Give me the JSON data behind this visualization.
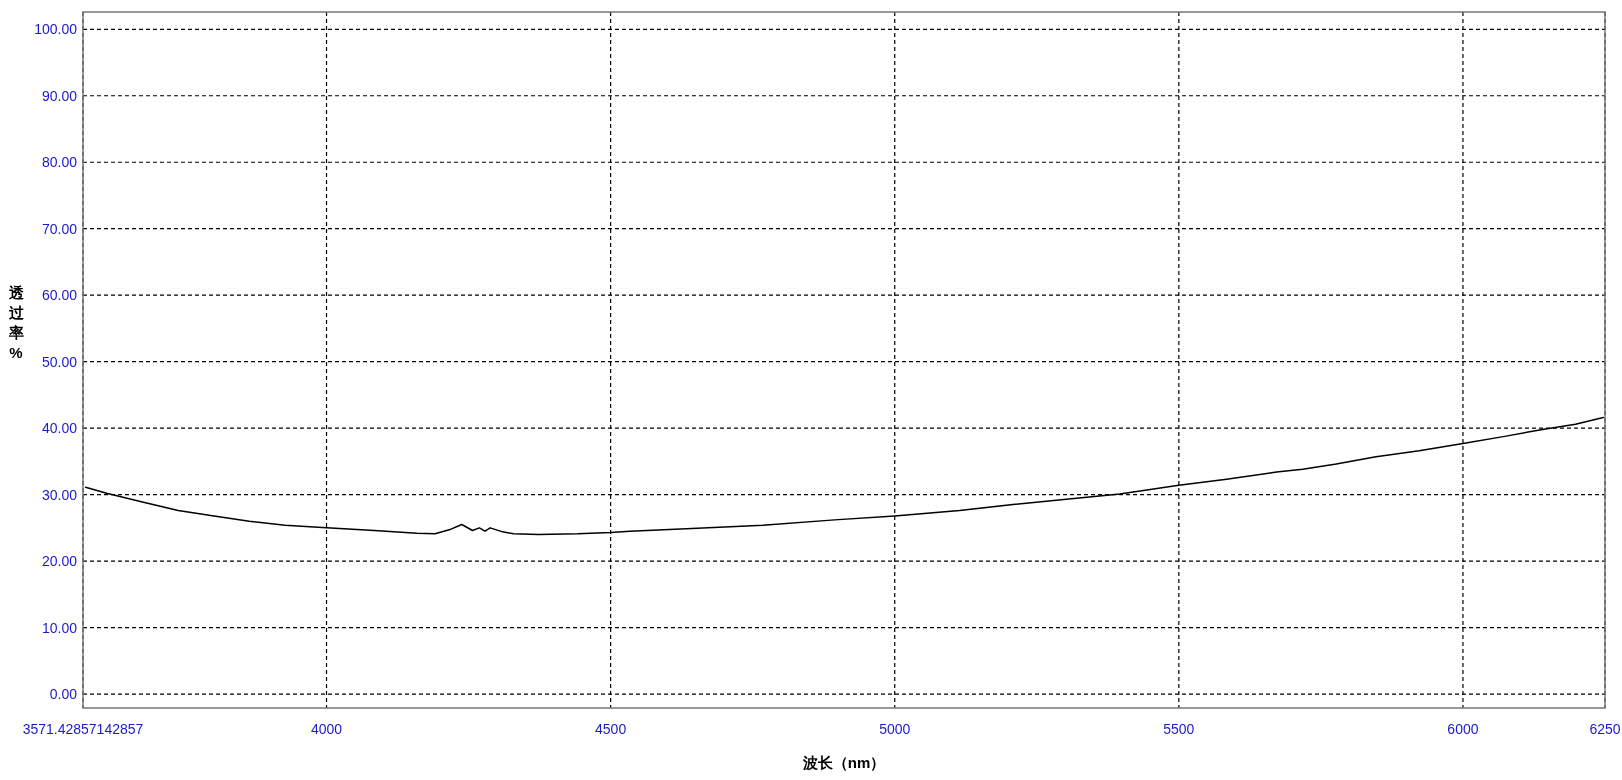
{
  "chart_data": {
    "type": "line",
    "xlabel": "波长（nm）",
    "ylabel": "透过率%",
    "xlim": [
      3571.42857142857,
      6250
    ],
    "ylim": [
      -2.1,
      102.6
    ],
    "xticks": [
      {
        "value": 3571.42857142857,
        "label": "3571.42857142857"
      },
      4000,
      4500,
      5000,
      5500,
      6000,
      6250
    ],
    "yticks": [
      {
        "value": 0,
        "label": "0.00"
      },
      {
        "value": 10,
        "label": "10.00"
      },
      {
        "value": 20,
        "label": "20.00"
      },
      {
        "value": 30,
        "label": "30.00"
      },
      {
        "value": 40,
        "label": "40.00"
      },
      {
        "value": 50,
        "label": "50.00"
      },
      {
        "value": 60,
        "label": "60.00"
      },
      {
        "value": 70,
        "label": "70.00"
      },
      {
        "value": 80,
        "label": "80.00"
      },
      {
        "value": 90,
        "label": "90.00"
      },
      {
        "value": 100,
        "label": "100.00"
      }
    ],
    "grid": true,
    "x": [
      3576,
      3613,
      3676,
      3739,
      3802,
      3864,
      3927,
      4000,
      4084,
      4159,
      4191,
      4216,
      4238,
      4257,
      4269,
      4279,
      4288,
      4310,
      4329,
      4373,
      4442,
      4500,
      4534,
      4643,
      4768,
      4894,
      5000,
      5114,
      5208,
      5302,
      5396,
      5500,
      5584,
      5672,
      5718,
      5777,
      5847,
      5923,
      6000,
      6076,
      6140,
      6198,
      6247
    ],
    "series": [
      {
        "color": "#000000",
        "values": [
          31.1,
          30.2,
          28.9,
          27.6,
          26.8,
          26.0,
          25.4,
          25.0,
          24.6,
          24.2,
          24.1,
          24.7,
          25.5,
          24.6,
          25.0,
          24.5,
          25.0,
          24.4,
          24.1,
          24.0,
          24.1,
          24.3,
          24.5,
          24.9,
          25.4,
          26.2,
          26.8,
          27.6,
          28.5,
          29.3,
          30.1,
          31.4,
          32.3,
          33.4,
          33.8,
          34.6,
          35.7,
          36.6,
          37.7,
          38.8,
          39.8,
          40.6,
          41.6
        ]
      }
    ]
  }
}
